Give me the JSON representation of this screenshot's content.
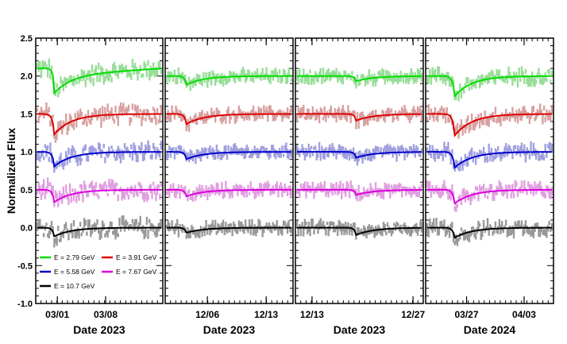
{
  "chart_data": {
    "type": "line",
    "ylabel": "Normalized Flux",
    "ylim": [
      -1.0,
      2.5
    ],
    "y_ticks": [
      -1.0,
      -0.5,
      0.0,
      0.5,
      1.0,
      1.5,
      2.0,
      2.5
    ],
    "y_tick_labels": [
      "-1.0",
      "-0.5",
      "0.0",
      "0.5",
      "1.0",
      "1.5",
      "2.0",
      "2.5"
    ],
    "series": [
      {
        "name": "E = 2.79 GeV",
        "offset": 2.0,
        "line_color": "#00dd00",
        "data_color": "#99dd99"
      },
      {
        "name": "E = 3.91 GeV",
        "offset": 1.5,
        "line_color": "#dd0000",
        "data_color": "#d8a0a0"
      },
      {
        "name": "E = 5.58 GeV",
        "offset": 1.0,
        "line_color": "#0000cc",
        "data_color": "#a0a0e0"
      },
      {
        "name": "E = 7.67 GeV",
        "offset": 0.5,
        "line_color": "#dd00dd",
        "data_color": "#e0a0e0"
      },
      {
        "name": "E = 10.7 GeV",
        "offset": 0.0,
        "line_color": "#000000",
        "data_color": "#999999"
      }
    ],
    "panels": [
      {
        "xlabel": "Date 2023",
        "tick_labels": [
          "03/01",
          "03/08"
        ],
        "dip_depths": [
          0.25,
          0.28,
          0.2,
          0.17,
          0.12
        ],
        "variability": 0.1
      },
      {
        "xlabel": "Date 2023",
        "tick_labels": [
          "12/06",
          "12/13"
        ],
        "dip_depths": [
          0.12,
          0.14,
          0.1,
          0.09,
          0.07
        ],
        "variability": 0.06
      },
      {
        "xlabel": "Date 2023",
        "tick_labels": [
          "12/13",
          "12/27"
        ],
        "dip_depths": [
          0.07,
          0.09,
          0.08,
          0.07,
          0.1
        ],
        "variability": 0.06
      },
      {
        "xlabel": "Date 2024",
        "tick_labels": [
          "03/27",
          "04/03"
        ],
        "dip_depths": [
          0.28,
          0.3,
          0.22,
          0.19,
          0.14
        ],
        "variability": 0.08
      }
    ]
  }
}
